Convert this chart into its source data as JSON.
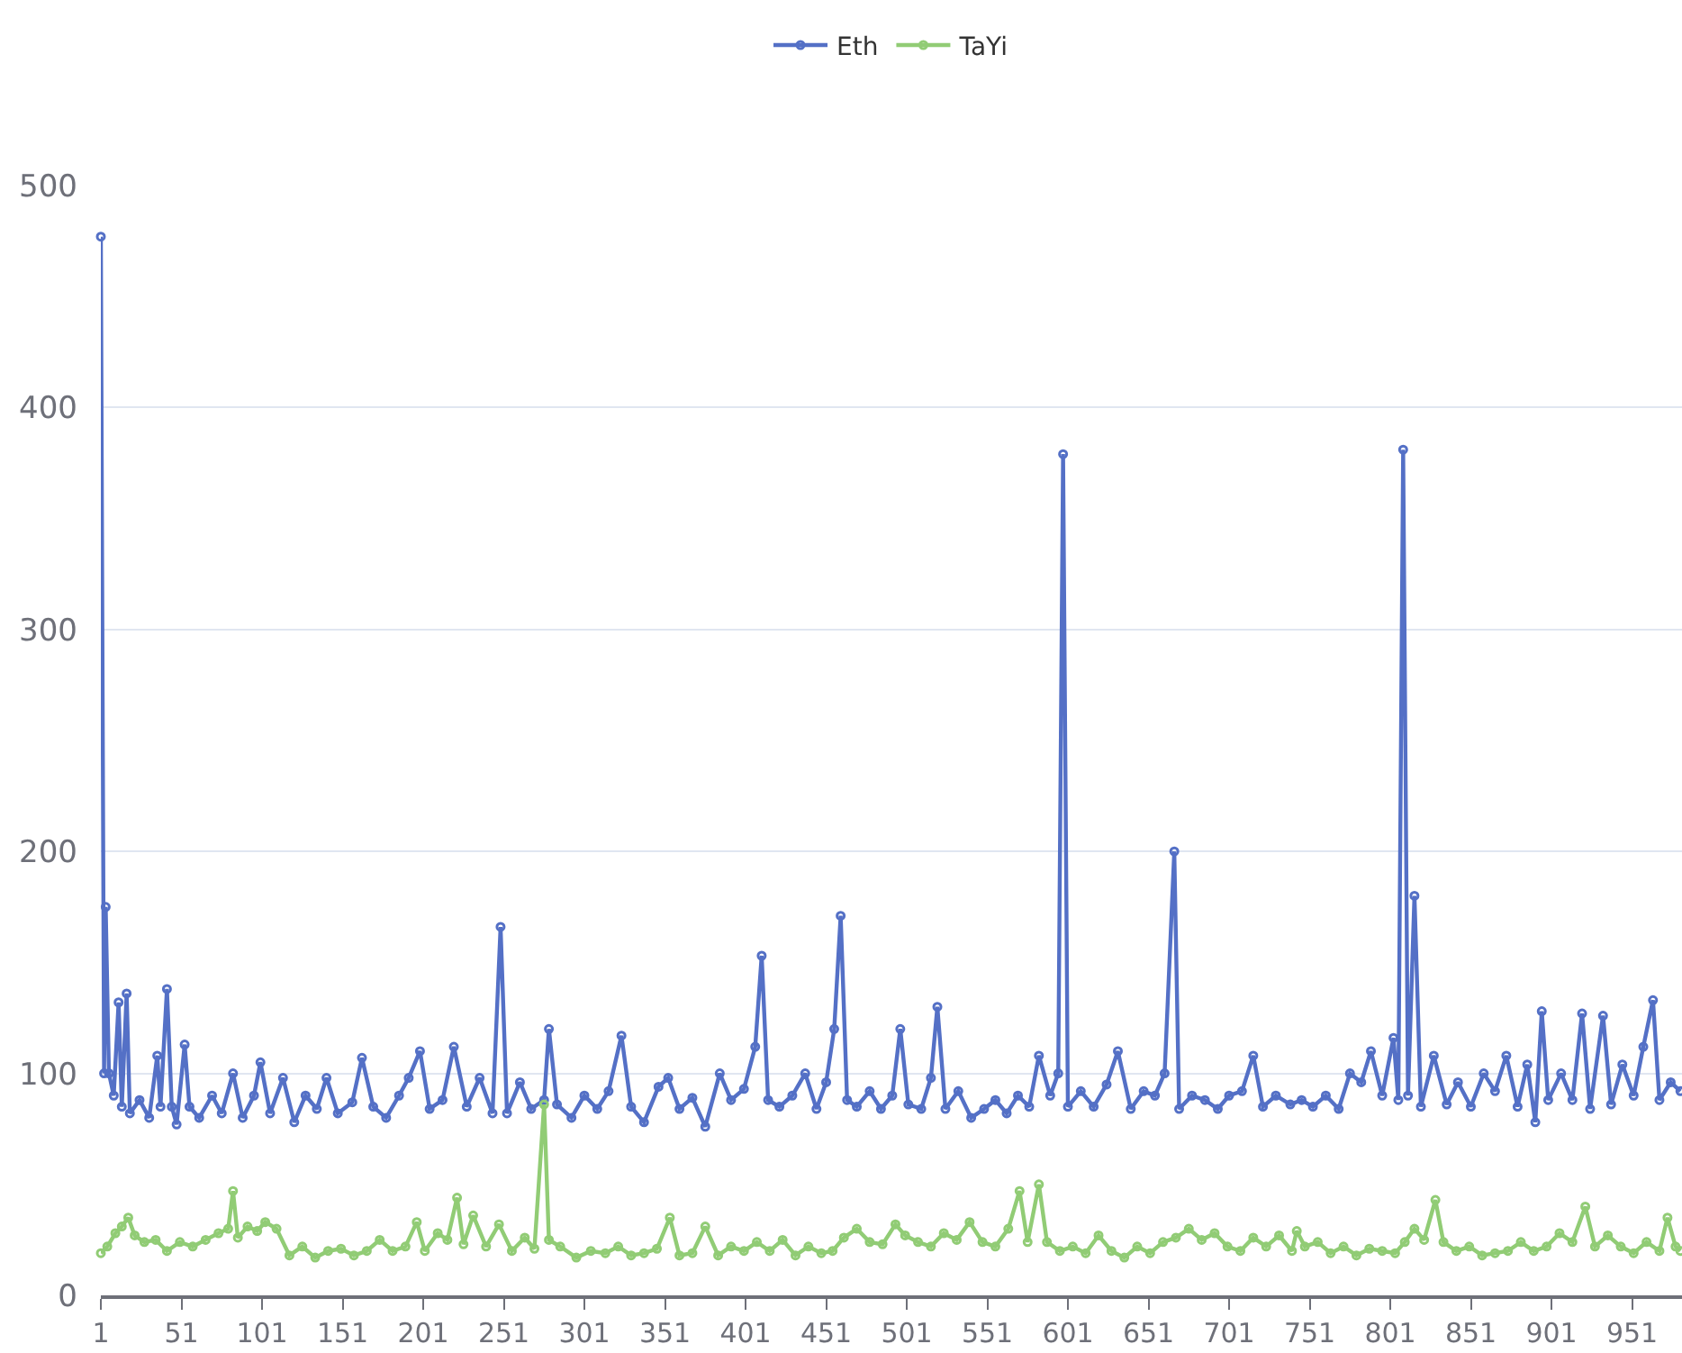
{
  "chart_data": {
    "type": "line",
    "xlim": [
      1,
      982
    ],
    "xticks": [
      1,
      51,
      101,
      151,
      201,
      251,
      301,
      351,
      401,
      451,
      501,
      551,
      601,
      651,
      701,
      751,
      801,
      851,
      901,
      951
    ],
    "ylim": [
      0,
      500
    ],
    "yticks": [
      0,
      100,
      200,
      300,
      400,
      500
    ],
    "grid": "y",
    "legend": "top",
    "marker": "circle",
    "line_style": "solid",
    "series": [
      {
        "name": "Eth",
        "color": "#5470c6",
        "x": [
          1,
          3,
          4,
          6,
          9,
          12,
          14,
          17,
          19,
          25,
          31,
          36,
          38,
          42,
          45,
          48,
          53,
          56,
          62,
          70,
          76,
          83,
          89,
          96,
          100,
          106,
          114,
          121,
          128,
          135,
          141,
          148,
          157,
          163,
          170,
          178,
          186,
          192,
          199,
          205,
          213,
          220,
          228,
          236,
          244,
          249,
          253,
          261,
          268,
          276,
          279,
          284,
          293,
          301,
          309,
          316,
          324,
          330,
          338,
          347,
          353,
          360,
          368,
          376,
          385,
          392,
          400,
          407,
          411,
          415,
          422,
          430,
          438,
          445,
          451,
          456,
          460,
          464,
          470,
          478,
          485,
          492,
          497,
          502,
          510,
          516,
          520,
          525,
          533,
          541,
          549,
          556,
          563,
          570,
          577,
          583,
          590,
          595,
          598,
          601,
          609,
          617,
          625,
          632,
          640,
          648,
          655,
          661,
          667,
          670,
          678,
          686,
          694,
          701,
          709,
          716,
          722,
          730,
          739,
          746,
          753,
          761,
          769,
          776,
          783,
          789,
          796,
          803,
          806,
          809,
          812,
          816,
          820,
          828,
          836,
          843,
          851,
          859,
          866,
          873,
          880,
          886,
          891,
          895,
          899,
          907,
          914,
          920,
          925,
          933,
          938,
          945,
          952,
          958,
          964,
          968,
          975,
          981
        ],
        "values": [
          477,
          100,
          175,
          100,
          90,
          132,
          85,
          136,
          82,
          88,
          80,
          108,
          85,
          138,
          85,
          77,
          113,
          85,
          80,
          90,
          82,
          100,
          80,
          90,
          105,
          82,
          98,
          78,
          90,
          84,
          98,
          82,
          87,
          107,
          85,
          80,
          90,
          98,
          110,
          84,
          88,
          112,
          85,
          98,
          82,
          166,
          82,
          96,
          84,
          88,
          120,
          86,
          80,
          90,
          84,
          92,
          117,
          85,
          78,
          94,
          98,
          84,
          89,
          76,
          100,
          88,
          93,
          112,
          153,
          88,
          85,
          90,
          100,
          84,
          96,
          120,
          171,
          88,
          85,
          92,
          84,
          90,
          120,
          86,
          84,
          98,
          130,
          84,
          92,
          80,
          84,
          88,
          82,
          90,
          85,
          108,
          90,
          100,
          379,
          85,
          92,
          85,
          95,
          110,
          84,
          92,
          90,
          100,
          200,
          84,
          90,
          88,
          84,
          90,
          92,
          108,
          85,
          90,
          86,
          88,
          85,
          90,
          84,
          100,
          96,
          110,
          90,
          116,
          88,
          381,
          90,
          180,
          85,
          108,
          86,
          96,
          85,
          100,
          92,
          108,
          85,
          104,
          78,
          128,
          88,
          100,
          88,
          127,
          84,
          126,
          86,
          104,
          90,
          112,
          133,
          88,
          96,
          92
        ]
      },
      {
        "name": "TaYi",
        "color": "#91cc75",
        "x": [
          1,
          5,
          10,
          14,
          18,
          22,
          28,
          35,
          42,
          50,
          58,
          66,
          74,
          80,
          83,
          86,
          92,
          98,
          103,
          110,
          118,
          126,
          134,
          142,
          150,
          158,
          166,
          174,
          182,
          190,
          197,
          202,
          210,
          216,
          222,
          226,
          232,
          240,
          248,
          256,
          264,
          270,
          276,
          279,
          286,
          296,
          305,
          314,
          322,
          330,
          338,
          346,
          354,
          360,
          368,
          376,
          384,
          392,
          400,
          408,
          416,
          424,
          432,
          440,
          448,
          455,
          462,
          470,
          478,
          486,
          494,
          500,
          508,
          516,
          524,
          532,
          540,
          548,
          556,
          564,
          571,
          576,
          583,
          588,
          596,
          604,
          612,
          620,
          628,
          636,
          644,
          652,
          660,
          668,
          676,
          684,
          692,
          700,
          708,
          716,
          724,
          732,
          740,
          743,
          748,
          756,
          764,
          772,
          780,
          788,
          796,
          804,
          810,
          816,
          822,
          829,
          834,
          842,
          850,
          858,
          866,
          874,
          882,
          890,
          898,
          906,
          914,
          922,
          928,
          936,
          944,
          952,
          960,
          968,
          973,
          978,
          981
        ],
        "values": [
          19,
          22,
          28,
          31,
          35,
          27,
          24,
          25,
          20,
          24,
          22,
          25,
          28,
          30,
          47,
          26,
          31,
          29,
          33,
          30,
          18,
          22,
          17,
          20,
          21,
          18,
          20,
          25,
          20,
          22,
          33,
          20,
          28,
          25,
          44,
          23,
          36,
          22,
          32,
          20,
          26,
          21,
          86,
          25,
          22,
          17,
          20,
          19,
          22,
          18,
          19,
          21,
          35,
          18,
          19,
          31,
          18,
          22,
          20,
          24,
          20,
          25,
          18,
          22,
          19,
          20,
          26,
          30,
          24,
          23,
          32,
          27,
          24,
          22,
          28,
          25,
          33,
          24,
          22,
          30,
          47,
          24,
          50,
          24,
          20,
          22,
          19,
          27,
          20,
          17,
          22,
          19,
          24,
          26,
          30,
          25,
          28,
          22,
          20,
          26,
          22,
          27,
          20,
          29,
          22,
          24,
          19,
          22,
          18,
          21,
          20,
          19,
          24,
          30,
          25,
          43,
          24,
          20,
          22,
          18,
          19,
          20,
          24,
          20,
          22,
          28,
          24,
          40,
          22,
          27,
          22,
          19,
          24,
          20,
          35,
          22,
          20
        ]
      }
    ]
  }
}
